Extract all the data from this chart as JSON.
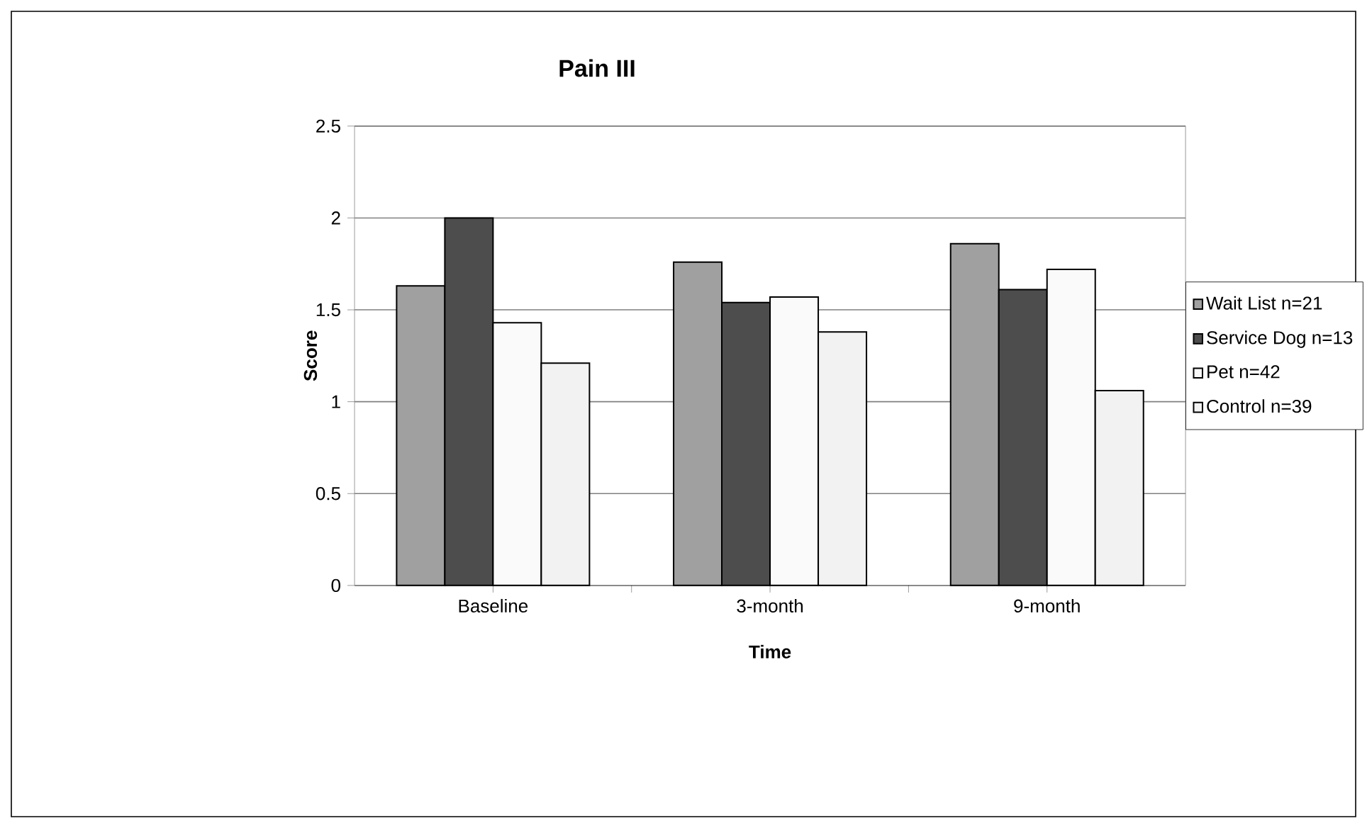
{
  "chart_data": {
    "type": "bar",
    "title": "Pain III",
    "xlabel": "Time",
    "ylabel": "Score",
    "categories": [
      "Baseline",
      "3-month",
      "9-month"
    ],
    "series": [
      {
        "name": "Wait List n=21",
        "color": "#a0a0a0",
        "values": [
          1.63,
          1.76,
          1.86
        ]
      },
      {
        "name": "Service Dog n=13",
        "color": "#4d4d4d",
        "values": [
          2.0,
          1.54,
          1.61
        ]
      },
      {
        "name": "Pet n=42",
        "color": "#fafafa",
        "values": [
          1.43,
          1.57,
          1.72
        ]
      },
      {
        "name": "Control n=39",
        "color": "#f2f2f2",
        "values": [
          1.21,
          1.38,
          1.06
        ]
      }
    ],
    "ylim": [
      0,
      2.5
    ],
    "yticks": [
      0,
      0.5,
      1,
      1.5,
      2,
      2.5
    ],
    "grid": "y",
    "legend": "right"
  }
}
